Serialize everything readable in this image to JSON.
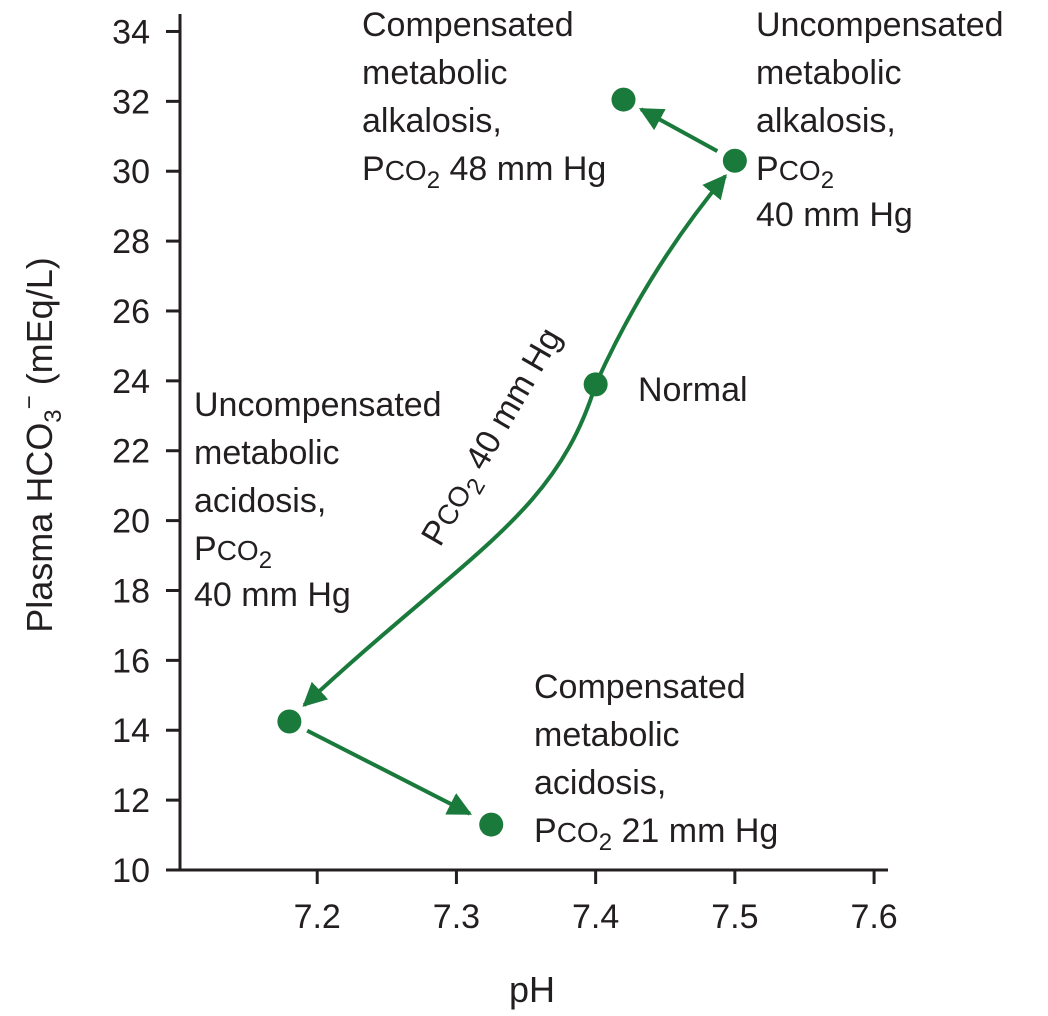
{
  "chart_data": {
    "type": "scatter",
    "xlabel": "pH",
    "ylabel_parts": {
      "main": "Plasma HCO",
      "sub": "3",
      "sup": "−",
      "unit": " (mEq/L)"
    },
    "xlim": [
      7.1,
      7.61
    ],
    "ylim": [
      10,
      34.5
    ],
    "x_ticks": [
      7.2,
      7.3,
      7.4,
      7.5,
      7.6
    ],
    "x_tick_labels": [
      "7.2",
      "7.3",
      "7.4",
      "7.5",
      "7.6"
    ],
    "y_ticks": [
      10,
      12,
      14,
      16,
      18,
      20,
      22,
      24,
      26,
      28,
      30,
      32,
      34
    ],
    "y_tick_labels": [
      "10",
      "12",
      "14",
      "16",
      "18",
      "20",
      "22",
      "24",
      "26",
      "28",
      "30",
      "32",
      "34"
    ],
    "grid": false,
    "marker_color": "#1a7a3c",
    "points": [
      {
        "id": "normal",
        "x": 7.4,
        "y": 23.9
      },
      {
        "id": "uncomp-alkalosis",
        "x": 7.5,
        "y": 30.3
      },
      {
        "id": "comp-alkalosis",
        "x": 7.42,
        "y": 32.05
      },
      {
        "id": "uncomp-acidosis",
        "x": 7.18,
        "y": 14.25
      },
      {
        "id": "comp-acidosis",
        "x": 7.325,
        "y": 11.3
      }
    ],
    "curve_label": {
      "p": "P",
      "co": "CO",
      "sub": "2",
      "rest": " 40 mm Hg"
    },
    "annotations": {
      "normal": "Normal",
      "comp_alkalosis": [
        "Compensated",
        "metabolic",
        "alkalosis,"
      ],
      "comp_alkalosis_pco2": {
        "p": "P",
        "co": "CO",
        "sub": "2",
        "rest": " 48 mm Hg"
      },
      "uncomp_alkalosis": [
        "Uncompensated",
        "metabolic",
        "alkalosis,"
      ],
      "uncomp_alkalosis_pco2": {
        "p": "P",
        "co": "CO",
        "sub": "2"
      },
      "uncomp_alkalosis_mm": "40 mm Hg",
      "uncomp_acidosis": [
        "Uncompensated",
        "metabolic",
        "acidosis,"
      ],
      "uncomp_acidosis_pco2": {
        "p": "P",
        "co": "CO",
        "sub": "2"
      },
      "uncomp_acidosis_mm": "40 mm Hg",
      "comp_acidosis": [
        "Compensated",
        "metabolic",
        "acidosis,"
      ],
      "comp_acidosis_pco2": {
        "p": "P",
        "co": "CO",
        "sub": "2",
        "rest": " 21 mm Hg"
      }
    }
  }
}
